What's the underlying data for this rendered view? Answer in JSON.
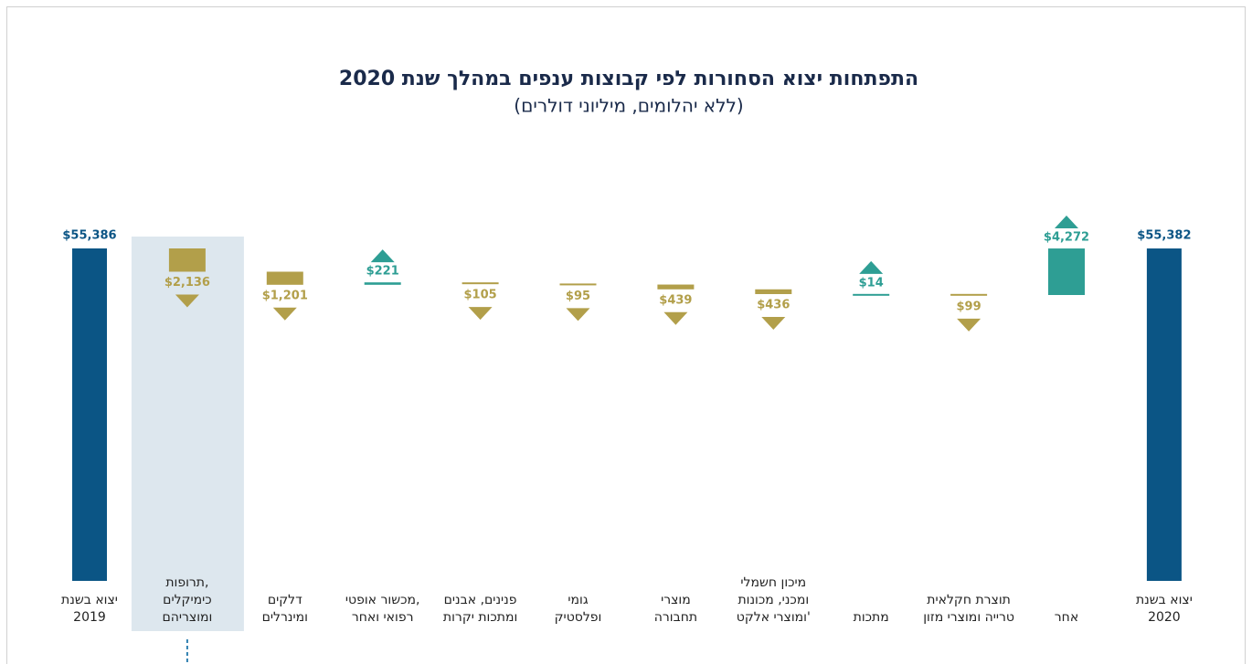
{
  "chart_data": {
    "type": "waterfall",
    "title": "התפתחות יצוא הסחורות לפי קבוצות ענפים במהלך שנת 2020",
    "subtitle": "(ללא יהלומים, מיליוני דולרים)",
    "categories": [
      [
        "יצוא בשנת",
        "2019"
      ],
      [
        "תרופות,",
        "כימיקלים",
        "ומוצריהם"
      ],
      [
        "דלקים",
        "ומינרלים"
      ],
      [
        "מכשור אופטי,",
        "רפואי ואחר"
      ],
      [
        "פנינים, אבנים",
        "ומתכות יקרות"
      ],
      [
        "גומי",
        "ופלסטיק"
      ],
      [
        "מוצרי",
        "תחבורה"
      ],
      [
        "מיכון חשמלי",
        "ומכני, מכונות",
        "ומוצרי אלקט'"
      ],
      [
        "מתכות"
      ],
      [
        "תוצרת חקלאית",
        "טרייה ומוצרי מזון"
      ],
      [
        "אחר"
      ],
      [
        "יצוא בשנת",
        "2020"
      ]
    ],
    "measure": [
      "total",
      "relative",
      "relative",
      "relative",
      "relative",
      "relative",
      "relative",
      "relative",
      "relative",
      "relative",
      "relative",
      "total"
    ],
    "values": [
      55386,
      -2136,
      -1201,
      221,
      -105,
      -95,
      -439,
      -436,
      14,
      -99,
      4272,
      55382
    ],
    "value_labels": [
      "$55,386",
      "$2,136",
      "$1,201",
      "$221",
      "$105",
      "$95",
      "$439",
      "$436",
      "$14",
      "$99",
      "$4,272",
      "$55,382"
    ],
    "colors": {
      "total": "#0b5585",
      "increase": "#2e9e94",
      "decrease": "#b29f4a"
    },
    "highlight": 1
  }
}
